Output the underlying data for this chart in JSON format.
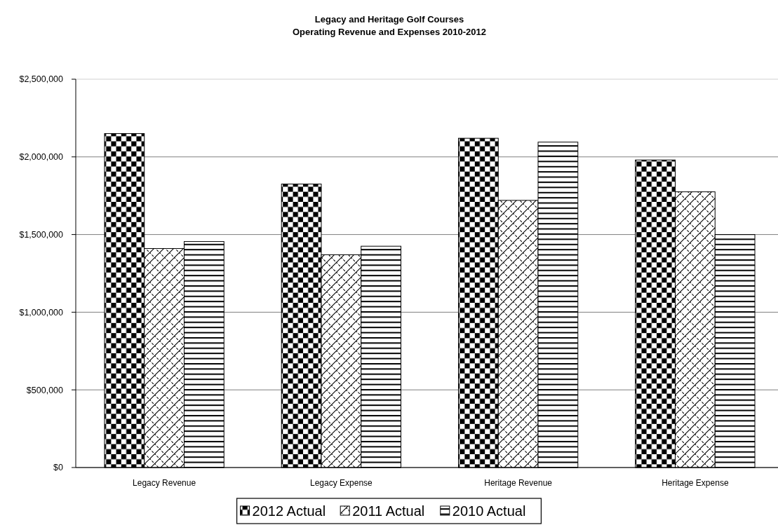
{
  "chart_data": {
    "type": "bar",
    "title": "Legacy and Heritage Golf Courses",
    "subtitle": "Operating Revenue and Expenses 2010-2012",
    "categories": [
      "Legacy Revenue",
      "Legacy Expense",
      "Heritage Revenue",
      "Heritage Expense"
    ],
    "series": [
      {
        "name": "2012 Actual",
        "color": "#000000",
        "values": [
          2150000,
          1825000,
          2120000,
          1980000
        ]
      },
      {
        "name": "2011 Actual",
        "color": "#000000",
        "values": [
          1410000,
          1370000,
          1720000,
          1775000
        ]
      },
      {
        "name": "2010 Actual",
        "color": "#000000",
        "values": [
          1455000,
          1425000,
          2095000,
          1500000
        ]
      }
    ],
    "ylim": [
      0,
      2500000
    ],
    "yticks": [
      {
        "value": 0,
        "label": "$0"
      },
      {
        "value": 500000,
        "label": "$500,000"
      },
      {
        "value": 1000000,
        "label": "$1,000,000"
      },
      {
        "value": 1500000,
        "label": "$1,500,000"
      },
      {
        "value": 2000000,
        "label": "$2,000,000"
      },
      {
        "value": 2500000,
        "label": "$2,500,000"
      }
    ],
    "grid": "y",
    "legend": "bottom"
  }
}
